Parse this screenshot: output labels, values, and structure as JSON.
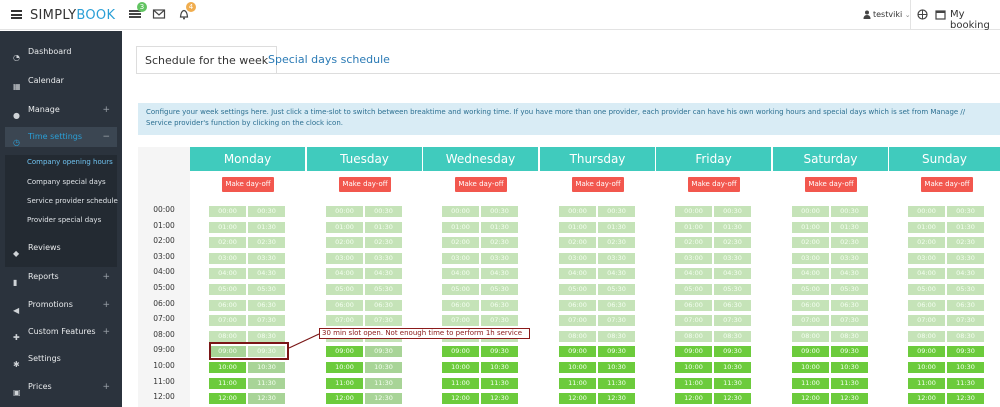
{
  "brand": {
    "part1": "SIMPLY",
    "part2": "BOOK"
  },
  "topbar": {
    "badge_list": "3",
    "badge_bell": "4",
    "user": "testviki",
    "my_booking": "My booking"
  },
  "sidebar": {
    "items": [
      {
        "label": "Dashboard",
        "icon": "dashboard-icon",
        "plus": ""
      },
      {
        "label": "Calendar",
        "icon": "calendar-icon",
        "plus": ""
      },
      {
        "label": "Manage",
        "icon": "user-icon",
        "plus": "+"
      },
      {
        "label": "Time settings",
        "icon": "clock-icon",
        "plus": "−"
      },
      {
        "label": "Reviews",
        "icon": "comments-icon",
        "plus": ""
      },
      {
        "label": "Reports",
        "icon": "bar-chart-icon",
        "plus": "+"
      },
      {
        "label": "Promotions",
        "icon": "megaphone-icon",
        "plus": "+"
      },
      {
        "label": "Custom Features",
        "icon": "puzzle-icon",
        "plus": "+"
      },
      {
        "label": "Settings",
        "icon": "gears-icon",
        "plus": ""
      },
      {
        "label": "Prices",
        "icon": "money-icon",
        "plus": "+"
      }
    ],
    "subitems": [
      "Company opening hours",
      "Company special days",
      "Service provider schedule",
      "Provider special days"
    ]
  },
  "tabs": {
    "week": "Schedule for the week",
    "special": "Special days schedule"
  },
  "info": "Configure your week settings here. Just click a time-slot to switch between breaktime and working time. If you have more than one provider, each provider can have his own working hours and special days which is set from Manage // Service provider's function by clicking on the clock icon.",
  "days": [
    "Monday",
    "Tuesday",
    "Wednesday",
    "Thursday",
    "Friday",
    "Saturday",
    "Sunday"
  ],
  "dayoff_label": "Make day-off",
  "hours": [
    "00:00",
    "01:00",
    "02:00",
    "03:00",
    "04:00",
    "05:00",
    "06:00",
    "07:00",
    "08:00",
    "09:00",
    "10:00",
    "11:00",
    "12:00"
  ],
  "slots": [
    [
      "00:00",
      "00:30"
    ],
    [
      "01:00",
      "01:30"
    ],
    [
      "02:00",
      "02:30"
    ],
    [
      "03:00",
      "03:30"
    ],
    [
      "04:00",
      "04:30"
    ],
    [
      "05:00",
      "05:30"
    ],
    [
      "06:00",
      "06:30"
    ],
    [
      "07:00",
      "07:30"
    ],
    [
      "08:00",
      "08:30"
    ],
    [
      "09:00",
      "09:30"
    ],
    [
      "10:00",
      "10:30"
    ],
    [
      "11:00",
      "11:30"
    ],
    [
      "12:00",
      "12:30"
    ]
  ],
  "callout": "30 min slot open. Not enough time to perform 1h service",
  "colors": {
    "header": "#40cbbd",
    "dayoff": "#f2574e",
    "working": "#6ccb3c",
    "break": "#c5e3b8",
    "accent": "#2a9fd6"
  }
}
